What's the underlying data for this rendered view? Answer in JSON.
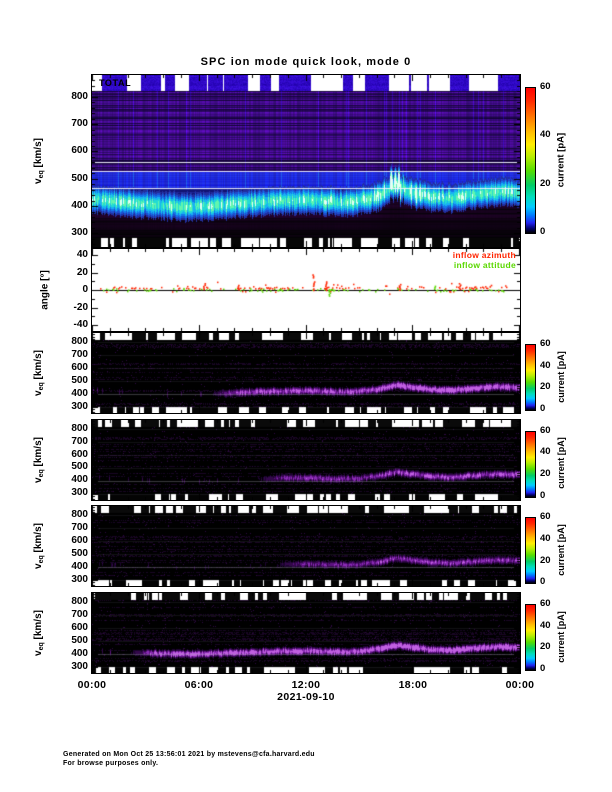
{
  "page": {
    "title": "SPC ion mode quick look, mode 0",
    "footer_line1": "Generated on Mon Oct 25 13:56:01 2021 by mstevens@cfa.harvard.edu",
    "footer_line2": "For browse purposes only."
  },
  "axis": {
    "x_tick_labels": [
      "00:00",
      "06:00",
      "12:00",
      "18:00",
      "00:00"
    ],
    "date_label": "2021-09-10",
    "velocity_ticks": [
      "800",
      "700",
      "600",
      "500",
      "400",
      "300"
    ],
    "velocity_tick_values": [
      800,
      700,
      600,
      500,
      400,
      300
    ],
    "velocity_label_prefix": "v",
    "velocity_label_sub": "eq",
    "velocity_label_units": " [km/s]",
    "angle_ticks": [
      "40",
      "20",
      "0",
      "-20",
      "-40"
    ],
    "angle_tick_values": [
      40,
      20,
      0,
      -20,
      -40
    ],
    "angle_label": "angle [°]",
    "colorbar_ticks": [
      "60",
      "40",
      "20",
      "0"
    ],
    "colorbar_tick_values": [
      60,
      40,
      20,
      0
    ],
    "colorbar_label": "current [pA]"
  },
  "panel_total": {
    "label": "TOTAL"
  },
  "legend": {
    "azimuth": {
      "label": "inflow azimuth",
      "color": "#ff2400"
    },
    "attitude": {
      "label": "inflow attitude",
      "color": "#5ad800"
    }
  },
  "colors": {
    "rainbow_top_to_bottom": [
      "#ff0000",
      "#ff7700",
      "#ffee00",
      "#55dd00",
      "#00cc66",
      "#00ccff",
      "#2222ee",
      "#000066",
      "#000000"
    ],
    "beam_bright": "#62f5ae",
    "quadrant_beam": "#8a2cb4"
  },
  "chart_data": [
    {
      "type": "heatmap",
      "panel": "TOTAL",
      "ylabel": "v_eq [km/s]",
      "ylim": [
        250,
        880
      ],
      "y_ticks": [
        300,
        400,
        500,
        600,
        700,
        800
      ],
      "x_hours_range": [
        0,
        24
      ],
      "x_tick_labels": [
        "00:00",
        "06:00",
        "12:00",
        "18:00",
        "00:00"
      ],
      "date": "2021-09-10",
      "colorbar": {
        "label": "current [pA]",
        "range": [
          0,
          60
        ],
        "ticks": [
          0,
          20,
          40,
          60
        ],
        "palette": "rainbow"
      },
      "beam_x_hours": [
        0,
        1,
        2,
        3,
        4,
        5,
        6,
        7,
        8,
        9,
        10,
        11,
        12,
        13,
        14,
        15,
        16,
        17,
        18,
        19,
        20,
        21,
        22,
        23,
        24
      ],
      "beam_v_kms": [
        430,
        420,
        415,
        408,
        402,
        400,
        400,
        405,
        410,
        415,
        420,
        422,
        426,
        420,
        416,
        422,
        438,
        468,
        452,
        436,
        430,
        440,
        450,
        455,
        450
      ],
      "beam_peak_current_pA": [
        18,
        16,
        15,
        15,
        16,
        18,
        20,
        22,
        24,
        25,
        26,
        28,
        26,
        24,
        25,
        28,
        34,
        38,
        30,
        26,
        25,
        26,
        28,
        30,
        28
      ],
      "background_current_pA": 2,
      "data_gap_color": "white",
      "white_line_v_kms": [
        560,
        530,
        465
      ]
    },
    {
      "type": "scatter",
      "panel": "inflow angle",
      "ylabel": "angle [°]",
      "ylim": [
        -48,
        48
      ],
      "y_ticks": [
        -40,
        -20,
        0,
        20,
        40
      ],
      "series": [
        {
          "name": "inflow azimuth",
          "color": "#ff2400",
          "typical_deg": 2.5,
          "spread_deg": 3,
          "spike_hours": [
            6.3,
            8.2,
            12.4,
            13.1,
            17.2,
            20.6,
            22.3
          ],
          "spike_deg": [
            8,
            6,
            18,
            10,
            7,
            8,
            6
          ]
        },
        {
          "name": "inflow attitude",
          "color": "#5ad800",
          "typical_deg": 0.8,
          "spread_deg": 2,
          "spike_hours": [
            5.1,
            13.3,
            19.2
          ],
          "spike_deg": [
            4,
            -6,
            5
          ]
        }
      ]
    },
    {
      "type": "heatmap",
      "panel": "quadrant-1",
      "ylabel": "v_eq [km/s]",
      "ylim": [
        250,
        870
      ],
      "y_ticks": [
        300,
        400,
        500,
        600,
        700,
        800
      ],
      "colorbar": {
        "label": "current [pA]",
        "range": [
          0,
          60
        ],
        "ticks": [
          0,
          20,
          40,
          60
        ]
      },
      "beam_visible_from_hour": 6.5,
      "beam_peak_current_pA": 9
    },
    {
      "type": "heatmap",
      "panel": "quadrant-2",
      "ylabel": "v_eq [km/s]",
      "ylim": [
        250,
        870
      ],
      "y_ticks": [
        300,
        400,
        500,
        600,
        700,
        800
      ],
      "colorbar": {
        "label": "current [pA]",
        "range": [
          0,
          60
        ],
        "ticks": [
          0,
          20,
          40,
          60
        ]
      },
      "beam_visible_from_hour": 9,
      "beam_peak_current_pA": 6
    },
    {
      "type": "heatmap",
      "panel": "quadrant-3",
      "ylabel": "v_eq [km/s]",
      "ylim": [
        250,
        870
      ],
      "y_ticks": [
        300,
        400,
        500,
        600,
        700,
        800
      ],
      "colorbar": {
        "label": "current [pA]",
        "range": [
          0,
          60
        ],
        "ticks": [
          0,
          20,
          40,
          60
        ]
      },
      "beam_visible_from_hour": 10,
      "beam_peak_current_pA": 5
    },
    {
      "type": "heatmap",
      "panel": "quadrant-4",
      "ylabel": "v_eq [km/s]",
      "ylim": [
        250,
        870
      ],
      "y_ticks": [
        300,
        400,
        500,
        600,
        700,
        800
      ],
      "colorbar": {
        "label": "current [pA]",
        "range": [
          0,
          60
        ],
        "ticks": [
          0,
          20,
          40,
          60
        ]
      },
      "beam_visible_from_hour": 2,
      "beam_peak_current_pA": 10
    }
  ]
}
